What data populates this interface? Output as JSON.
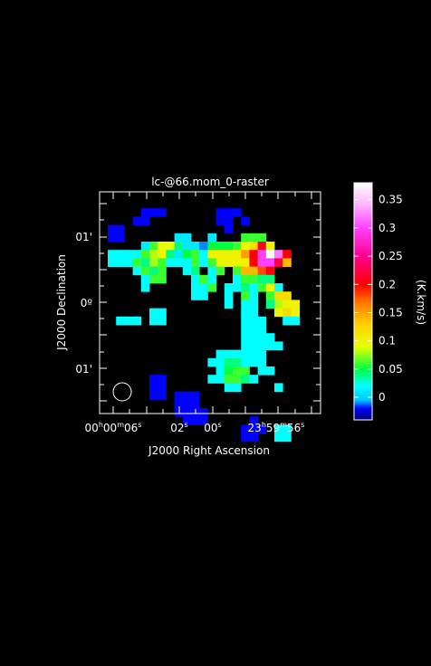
{
  "title": "lc-@66.mom_0-raster",
  "x_axis": {
    "label": "J2000 Right Ascension",
    "ticks": [
      {
        "main": "00",
        "h": "h",
        "mid": "00",
        "m": "m",
        "sec": "06",
        "s": "s"
      },
      {
        "main": "02",
        "s": "s"
      },
      {
        "main": "00",
        "s": "s"
      },
      {
        "main": "23",
        "h": "h",
        "mid": "59",
        "m": "m",
        "sec": "56",
        "s": "s"
      }
    ]
  },
  "y_axis": {
    "label": "J2000 Declination",
    "ticks": [
      "01'",
      "0º",
      "01'"
    ]
  },
  "colorbar": {
    "label": "(K.km/s)",
    "ticks": [
      "0.35",
      "0.3",
      "0.25",
      "0.2",
      "0.15",
      "0.1",
      "0.05",
      "0"
    ],
    "tick_values": [
      0.35,
      0.3,
      0.25,
      0.2,
      0.15,
      0.1,
      0.05,
      0
    ],
    "vmin": -0.04,
    "vmax": 0.38,
    "stops": [
      {
        "v": -0.04,
        "c": "#000070"
      },
      {
        "v": -0.02,
        "c": "#0000ff"
      },
      {
        "v": -0.005,
        "c": "#00c8ff"
      },
      {
        "v": 0.02,
        "c": "#00ffff"
      },
      {
        "v": 0.05,
        "c": "#00ff40"
      },
      {
        "v": 0.09,
        "c": "#e8ff00"
      },
      {
        "v": 0.13,
        "c": "#ffd000"
      },
      {
        "v": 0.17,
        "c": "#ff7000"
      },
      {
        "v": 0.2,
        "c": "#ff0000"
      },
      {
        "v": 0.25,
        "c": "#ff0090"
      },
      {
        "v": 0.3,
        "c": "#ff40ff"
      },
      {
        "v": 0.34,
        "c": "#ffb0ff"
      },
      {
        "v": 0.38,
        "c": "#ffffff"
      }
    ]
  },
  "chart_data": {
    "type": "heatmap",
    "title": "lc-@66.mom_0-raster",
    "xlabel": "J2000 Right Ascension",
    "ylabel": "J2000 Declination",
    "colorbar_label": "(K.km/s)",
    "grid": false,
    "legend": "right",
    "pixels_note_units": "K.km/s",
    "cells": [
      [
        4,
        1,
        -0.02
      ],
      [
        5,
        1,
        -0.02
      ],
      [
        6,
        1,
        -0.02
      ],
      [
        13,
        1,
        -0.02
      ],
      [
        14,
        1,
        -0.02
      ],
      [
        15,
        1,
        -0.02
      ],
      [
        3,
        2,
        -0.02
      ],
      [
        4,
        2,
        -0.02
      ],
      [
        13,
        2,
        -0.02
      ],
      [
        14,
        2,
        -0.02
      ],
      [
        16,
        2,
        -0.02
      ],
      [
        0,
        3,
        -0.02
      ],
      [
        1,
        3,
        -0.02
      ],
      [
        14,
        3,
        -0.02
      ],
      [
        0,
        4,
        -0.02
      ],
      [
        1,
        4,
        -0.02
      ],
      [
        8,
        4,
        0.01
      ],
      [
        9,
        4,
        0.01
      ],
      [
        12,
        4,
        0.01
      ],
      [
        16,
        4,
        0.06
      ],
      [
        17,
        4,
        0.06
      ],
      [
        18,
        4,
        0.06
      ],
      [
        4,
        5,
        0.01
      ],
      [
        5,
        5,
        0.06
      ],
      [
        6,
        5,
        0.09
      ],
      [
        7,
        5,
        0.09
      ],
      [
        8,
        5,
        0.04
      ],
      [
        9,
        5,
        0.01
      ],
      [
        10,
        5,
        0.01
      ],
      [
        11,
        5,
        -0.01
      ],
      [
        12,
        5,
        0.05
      ],
      [
        13,
        5,
        0.05
      ],
      [
        14,
        5,
        0.05
      ],
      [
        15,
        5,
        0.06
      ],
      [
        16,
        5,
        0.09
      ],
      [
        17,
        5,
        0.12
      ],
      [
        18,
        5,
        0.21
      ],
      [
        19,
        5,
        0.1
      ],
      [
        0,
        6,
        0.02
      ],
      [
        1,
        6,
        0.02
      ],
      [
        2,
        6,
        0.02
      ],
      [
        3,
        6,
        0.02
      ],
      [
        4,
        6,
        0.06
      ],
      [
        5,
        6,
        0.08
      ],
      [
        6,
        6,
        0.1
      ],
      [
        7,
        6,
        0.04
      ],
      [
        8,
        6,
        0.01
      ],
      [
        9,
        6,
        0.05
      ],
      [
        10,
        6,
        0.06
      ],
      [
        11,
        6,
        0.02
      ],
      [
        12,
        6,
        0.1
      ],
      [
        13,
        6,
        0.1
      ],
      [
        14,
        6,
        0.1
      ],
      [
        15,
        6,
        0.1
      ],
      [
        16,
        6,
        0.15
      ],
      [
        17,
        6,
        0.2
      ],
      [
        18,
        6,
        0.3
      ],
      [
        19,
        6,
        0.38
      ],
      [
        20,
        6,
        0.32
      ],
      [
        21,
        6,
        0.2
      ],
      [
        0,
        7,
        0.02
      ],
      [
        1,
        7,
        0.02
      ],
      [
        2,
        7,
        0.02
      ],
      [
        3,
        7,
        0.06
      ],
      [
        4,
        7,
        0.04
      ],
      [
        5,
        7,
        0.08
      ],
      [
        6,
        7,
        0.06
      ],
      [
        7,
        7,
        0.02
      ],
      [
        8,
        7,
        0.02
      ],
      [
        9,
        7,
        0.02
      ],
      [
        10,
        7,
        0.06
      ],
      [
        11,
        7,
        0.02
      ],
      [
        12,
        7,
        0.06
      ],
      [
        13,
        7,
        0.1
      ],
      [
        14,
        7,
        0.1
      ],
      [
        15,
        7,
        0.1
      ],
      [
        16,
        7,
        0.1
      ],
      [
        17,
        7,
        0.2
      ],
      [
        18,
        7,
        0.3
      ],
      [
        19,
        7,
        0.3
      ],
      [
        20,
        7,
        0.22
      ],
      [
        21,
        7,
        0.14
      ],
      [
        3,
        8,
        0.02
      ],
      [
        4,
        8,
        0.06
      ],
      [
        5,
        8,
        0.04
      ],
      [
        6,
        8,
        0.06
      ],
      [
        9,
        8,
        0.02
      ],
      [
        10,
        8,
        0.04
      ],
      [
        12,
        8,
        0.02
      ],
      [
        13,
        8,
        0.06
      ],
      [
        15,
        8,
        0.06
      ],
      [
        16,
        8,
        0.14
      ],
      [
        17,
        8,
        0.14
      ],
      [
        18,
        8,
        0.18
      ],
      [
        19,
        8,
        0.2
      ],
      [
        4,
        9,
        0.02
      ],
      [
        5,
        9,
        0.06
      ],
      [
        6,
        9,
        0.06
      ],
      [
        10,
        9,
        0.02
      ],
      [
        11,
        9,
        0.06
      ],
      [
        12,
        9,
        0.02
      ],
      [
        15,
        9,
        0.02
      ],
      [
        16,
        9,
        0.06
      ],
      [
        17,
        9,
        0.06
      ],
      [
        18,
        9,
        0.04
      ],
      [
        19,
        9,
        0.04
      ],
      [
        4,
        10,
        0.02
      ],
      [
        10,
        10,
        0.02
      ],
      [
        11,
        10,
        0.02
      ],
      [
        12,
        10,
        0.06
      ],
      [
        14,
        10,
        0.02
      ],
      [
        15,
        10,
        0.02
      ],
      [
        16,
        10,
        0.04
      ],
      [
        17,
        10,
        0.02
      ],
      [
        18,
        10,
        0.06
      ],
      [
        19,
        10,
        0.1
      ],
      [
        20,
        10,
        0.02
      ],
      [
        10,
        11,
        0.02
      ],
      [
        11,
        11,
        0.02
      ],
      [
        14,
        11,
        0.02
      ],
      [
        16,
        11,
        0.06
      ],
      [
        17,
        11,
        0.02
      ],
      [
        19,
        11,
        0.06
      ],
      [
        20,
        11,
        0.12
      ],
      [
        21,
        11,
        0.12
      ],
      [
        14,
        12,
        0.02
      ],
      [
        16,
        12,
        0.02
      ],
      [
        17,
        12,
        0.02
      ],
      [
        19,
        12,
        0.04
      ],
      [
        20,
        12,
        0.08
      ],
      [
        21,
        12,
        0.1
      ],
      [
        22,
        12,
        0.1
      ],
      [
        5,
        13,
        0.02
      ],
      [
        6,
        13,
        0.02
      ],
      [
        16,
        13,
        0.02
      ],
      [
        17,
        13,
        0.02
      ],
      [
        20,
        13,
        0.1
      ],
      [
        21,
        13,
        0.12
      ],
      [
        22,
        13,
        0.1
      ],
      [
        1,
        14,
        0.02
      ],
      [
        2,
        14,
        0.02
      ],
      [
        3,
        14,
        0.02
      ],
      [
        5,
        14,
        0.02
      ],
      [
        6,
        14,
        0.02
      ],
      [
        16,
        14,
        0.02
      ],
      [
        17,
        14,
        0.02
      ],
      [
        18,
        14,
        0.02
      ],
      [
        21,
        14,
        0.02
      ],
      [
        22,
        14,
        0.02
      ],
      [
        16,
        15,
        0.02
      ],
      [
        17,
        15,
        0.02
      ],
      [
        18,
        15,
        0.02
      ],
      [
        16,
        16,
        0.02
      ],
      [
        17,
        16,
        0.02
      ],
      [
        18,
        16,
        0.02
      ],
      [
        19,
        16,
        0.02
      ],
      [
        16,
        17,
        0.02
      ],
      [
        17,
        17,
        0.02
      ],
      [
        18,
        17,
        0.02
      ],
      [
        19,
        17,
        0.02
      ],
      [
        20,
        17,
        0.02
      ],
      [
        13,
        18,
        0.02
      ],
      [
        14,
        18,
        0.02
      ],
      [
        15,
        18,
        0.02
      ],
      [
        16,
        18,
        0.02
      ],
      [
        17,
        18,
        0.02
      ],
      [
        18,
        18,
        0.02
      ],
      [
        12,
        19,
        0.02
      ],
      [
        13,
        19,
        0.02
      ],
      [
        14,
        19,
        0.04
      ],
      [
        15,
        19,
        0.04
      ],
      [
        16,
        19,
        0.02
      ],
      [
        17,
        19,
        0.02
      ],
      [
        18,
        19,
        0.02
      ],
      [
        13,
        20,
        0.02
      ],
      [
        14,
        20,
        0.05
      ],
      [
        15,
        20,
        0.06
      ],
      [
        16,
        20,
        0.06
      ],
      [
        18,
        20,
        0.02
      ],
      [
        19,
        20,
        0.02
      ],
      [
        12,
        21,
        0.02
      ],
      [
        13,
        21,
        0.02
      ],
      [
        14,
        21,
        0.06
      ],
      [
        15,
        21,
        0.06
      ],
      [
        16,
        21,
        0.04
      ],
      [
        17,
        21,
        0.02
      ],
      [
        5,
        21,
        -0.02
      ],
      [
        6,
        21,
        -0.02
      ],
      [
        14,
        22,
        0.02
      ],
      [
        15,
        22,
        0.02
      ],
      [
        5,
        22,
        -0.02
      ],
      [
        6,
        22,
        -0.02
      ],
      [
        20,
        22,
        0.02
      ],
      [
        5,
        23,
        -0.02
      ],
      [
        6,
        23,
        -0.02
      ],
      [
        8,
        23,
        -0.02
      ],
      [
        9,
        23,
        -0.02
      ],
      [
        10,
        23,
        -0.02
      ],
      [
        8,
        24,
        -0.02
      ],
      [
        9,
        24,
        -0.02
      ],
      [
        10,
        24,
        -0.02
      ],
      [
        8,
        25,
        -0.02
      ],
      [
        9,
        25,
        -0.02
      ],
      [
        10,
        25,
        -0.02
      ],
      [
        11,
        25,
        -0.02
      ],
      [
        9,
        26,
        -0.02
      ],
      [
        10,
        26,
        -0.02
      ],
      [
        11,
        26,
        -0.02
      ],
      [
        17,
        26,
        -0.02
      ],
      [
        16,
        27,
        -0.02
      ],
      [
        17,
        27,
        -0.02
      ],
      [
        18,
        27,
        -0.02
      ],
      [
        16,
        28,
        -0.02
      ],
      [
        17,
        28,
        -0.02
      ],
      [
        20,
        27,
        0.02
      ],
      [
        21,
        27,
        0.02
      ],
      [
        20,
        28,
        0.02
      ],
      [
        21,
        28,
        0.02
      ]
    ]
  }
}
